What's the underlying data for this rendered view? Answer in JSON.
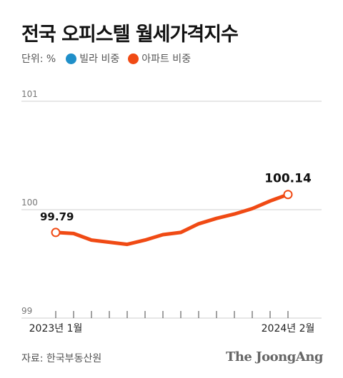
{
  "title": "전국 오피스텔 월세가격지수",
  "legend": {
    "unit": "단위: %",
    "items": [
      {
        "label": "빌라 비중",
        "color": "#1f8fc9"
      },
      {
        "label": "아파트 비중",
        "color": "#f04a14"
      }
    ]
  },
  "source": "자료: 한국부동산원",
  "brand": "The JoongAng",
  "chart_data": {
    "type": "line",
    "ylim": [
      99,
      101
    ],
    "yticks": [
      "101",
      "100",
      "99"
    ],
    "xtick_labels": [
      "2023년 1월",
      "2024년 2월"
    ],
    "grid": true,
    "series": [
      {
        "name": "아파트 비중",
        "color": "#f04a14",
        "values": [
          99.79,
          99.78,
          99.72,
          99.7,
          99.68,
          99.72,
          99.77,
          99.79,
          99.87,
          99.92,
          99.96,
          100.01,
          100.08,
          100.14
        ]
      }
    ],
    "annotations": [
      {
        "index": 0,
        "text": "99.79"
      },
      {
        "index": 13,
        "text": "100.14"
      }
    ]
  }
}
